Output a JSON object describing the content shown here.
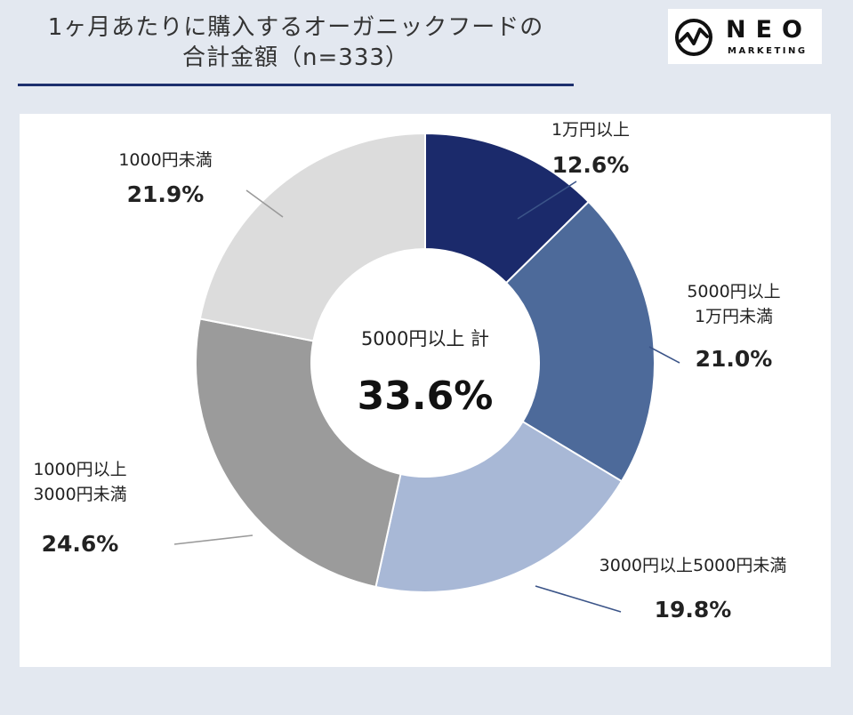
{
  "header": {
    "title_line1": "1ヶ月あたりに購入するオーガニックフードの",
    "title_line2": "合計金額（n=333）"
  },
  "logo": {
    "word": "NEO",
    "sub": "MARKETING",
    "icon": "pulse-circle-icon"
  },
  "center": {
    "label": "5000円以上 計",
    "value": "33.6%"
  },
  "colors": {
    "background": "#e3e8f0",
    "title_rule": "#1c2f6e"
  },
  "chart_data": {
    "type": "pie",
    "donut": true,
    "start": "top",
    "direction": "clockwise",
    "slices": [
      {
        "name": "1万円以上",
        "label_lines": [
          "1万円以上"
        ],
        "value": 12.6,
        "label": "12.6%",
        "color": "#1b2a6b"
      },
      {
        "name": "5000円以上1万円未満",
        "label_lines": [
          "5000円以上",
          "1万円未満"
        ],
        "value": 21.0,
        "label": "21.0%",
        "color": "#4d6a9a"
      },
      {
        "name": "3000円以上5000円未満",
        "label_lines": [
          "3000円以上5000円未満"
        ],
        "value": 19.8,
        "label": "19.8%",
        "color": "#a8b8d6"
      },
      {
        "name": "1000円以上3000円未満",
        "label_lines": [
          "1000円以上",
          "3000円未満"
        ],
        "value": 24.6,
        "label": "24.6%",
        "color": "#9b9b9b"
      },
      {
        "name": "1000円未満",
        "label_lines": [
          "1000円未満"
        ],
        "value": 21.9,
        "label": "21.9%",
        "color": "#dcdcdc"
      }
    ]
  }
}
